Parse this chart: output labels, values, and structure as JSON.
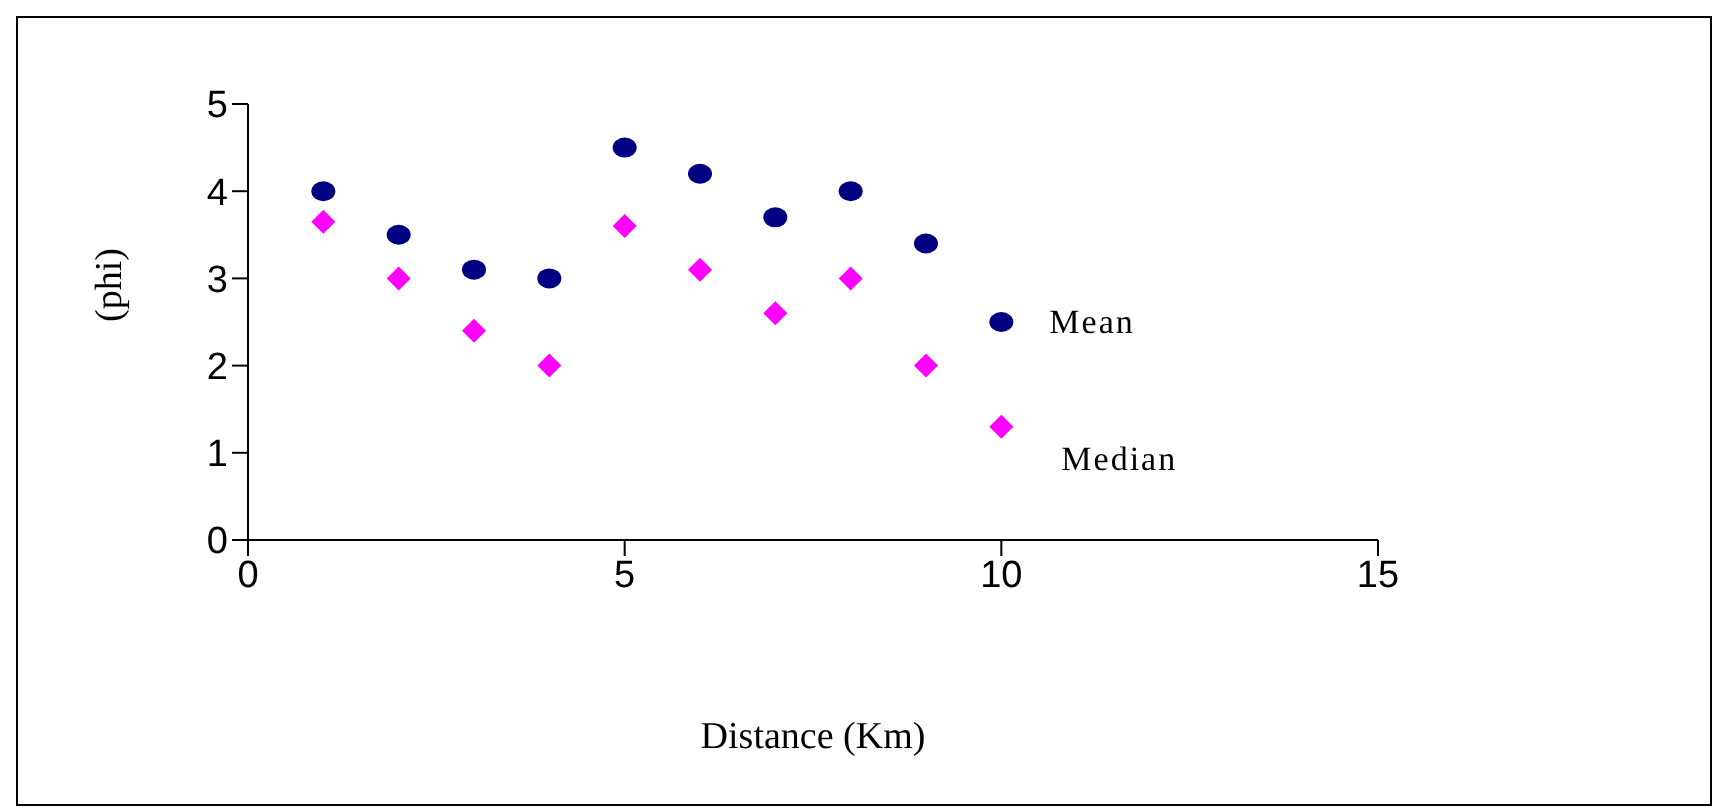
{
  "chart_data": {
    "type": "scatter",
    "xlabel": "Distance (Km)",
    "ylabel": "(phi)",
    "x": [
      1,
      2,
      3,
      4,
      5,
      6,
      7,
      8,
      9,
      10
    ],
    "xlim": [
      0,
      15
    ],
    "xticks": [
      0,
      5,
      10,
      15
    ],
    "ylim": [
      0,
      5
    ],
    "yticks": [
      0,
      1,
      2,
      3,
      4,
      5
    ],
    "grid": false,
    "legend": false,
    "series": [
      {
        "name": "Mean",
        "color": "#000080",
        "marker": "circle",
        "values": [
          4.0,
          3.5,
          3.1,
          3.0,
          4.5,
          4.2,
          3.7,
          4.0,
          3.4,
          2.5
        ]
      },
      {
        "name": "Median",
        "color": "#ff00ff",
        "marker": "diamond",
        "values": [
          3.65,
          3.0,
          2.4,
          2.0,
          3.6,
          3.1,
          2.6,
          3.0,
          2.0,
          1.3
        ]
      }
    ]
  }
}
